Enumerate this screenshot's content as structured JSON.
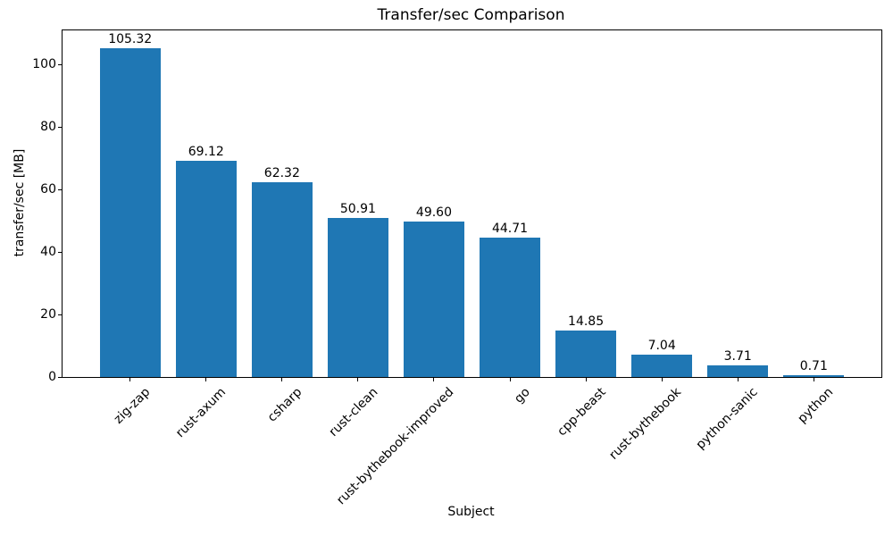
{
  "chart_data": {
    "type": "bar",
    "title": "Transfer/sec Comparison",
    "xlabel": "Subject",
    "ylabel": "transfer/sec [MB]",
    "categories": [
      "zig-zap",
      "rust-axum",
      "csharp",
      "rust-clean",
      "rust-bythebook-improved",
      "go",
      "cpp-beast",
      "rust-bythebook",
      "python-sanic",
      "python"
    ],
    "values": [
      105.32,
      69.12,
      62.32,
      50.91,
      49.6,
      44.71,
      14.85,
      7.04,
      3.71,
      0.71
    ],
    "value_labels": [
      "105.32",
      "69.12",
      "62.32",
      "50.91",
      "49.60",
      "44.71",
      "14.85",
      "7.04",
      "3.71",
      "0.71"
    ],
    "bar_color": "#1f77b4",
    "text_color": "#000000",
    "ylim": [
      0,
      110.9
    ],
    "xlim": [
      -0.89,
      9.89
    ],
    "bar_width_units": 0.8,
    "yticks": [
      0,
      20,
      40,
      60,
      80,
      100
    ],
    "x_tick_rotation": 45,
    "grid": false,
    "legend": null
  }
}
